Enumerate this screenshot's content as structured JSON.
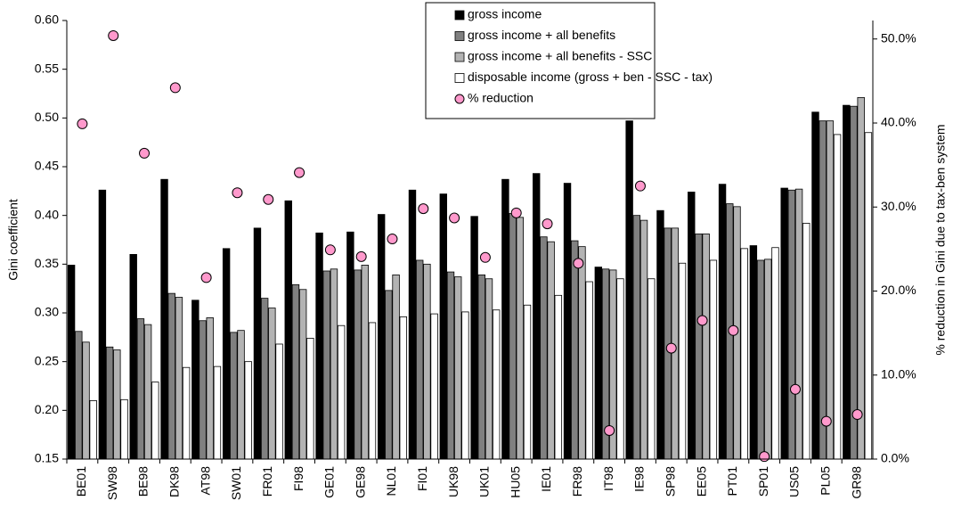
{
  "chart_data": {
    "type": "bar",
    "y_label": "Gini coefficient",
    "y2_label": "% reduction in Gini due to tax-ben system",
    "categories": [
      "BE01",
      "SW98",
      "BE98",
      "DK98",
      "AT98",
      "SW01",
      "FR01",
      "FI98",
      "GE01",
      "GE98",
      "NL01",
      "FI01",
      "UK98",
      "UK01",
      "HU05",
      "IE01",
      "FR98",
      "IT98",
      "IE98",
      "SP98",
      "EE05",
      "PT01",
      "SP01",
      "US05",
      "PL05",
      "GR98"
    ],
    "series": [
      {
        "name": "gross income",
        "color": "#000000",
        "values": [
          0.349,
          0.426,
          0.36,
          0.437,
          0.313,
          0.366,
          0.387,
          0.415,
          0.382,
          0.383,
          0.401,
          0.426,
          0.422,
          0.399,
          0.437,
          0.443,
          0.433,
          0.347,
          0.497,
          0.405,
          0.424,
          0.432,
          0.369,
          0.428,
          0.506,
          0.513
        ]
      },
      {
        "name": "gross income + all benefits",
        "color": "#808080",
        "values": [
          0.281,
          0.265,
          0.294,
          0.32,
          0.292,
          0.28,
          0.315,
          0.329,
          0.343,
          0.344,
          0.323,
          0.354,
          0.342,
          0.339,
          0.402,
          0.378,
          0.374,
          0.345,
          0.4,
          0.387,
          0.381,
          0.412,
          0.354,
          0.426,
          0.497,
          0.512
        ]
      },
      {
        "name": "gross income + all benefits - SSC",
        "color": "#b3b3b3",
        "values": [
          0.27,
          0.262,
          0.288,
          0.316,
          0.295,
          0.282,
          0.305,
          0.324,
          0.345,
          0.349,
          0.339,
          0.35,
          0.337,
          0.335,
          0.398,
          0.373,
          0.368,
          0.344,
          0.395,
          0.387,
          0.381,
          0.409,
          0.355,
          0.427,
          0.497,
          0.521
        ]
      },
      {
        "name": "disposable income (gross + ben - SSC - tax)",
        "color": "#ffffff",
        "values": [
          0.21,
          0.211,
          0.229,
          0.244,
          0.245,
          0.25,
          0.268,
          0.274,
          0.287,
          0.29,
          0.296,
          0.299,
          0.301,
          0.303,
          0.308,
          0.318,
          0.332,
          0.335,
          0.335,
          0.351,
          0.354,
          0.366,
          0.367,
          0.392,
          0.483,
          0.485
        ]
      },
      {
        "name": "% reduction",
        "color": "#ff99cc",
        "type": "scatter",
        "axis": "y2",
        "values": [
          39.9,
          50.4,
          36.4,
          44.2,
          21.6,
          31.7,
          30.9,
          34.1,
          24.9,
          24.1,
          26.2,
          29.8,
          28.7,
          24.0,
          29.3,
          28.0,
          23.3,
          3.4,
          32.5,
          13.2,
          16.5,
          15.3,
          0.3,
          8.3,
          4.5,
          5.3
        ]
      }
    ],
    "ylim": [
      0.15,
      0.6
    ],
    "yticks": [
      {
        "value": 0.15,
        "label": "0.15"
      },
      {
        "value": 0.2,
        "label": "0.20"
      },
      {
        "value": 0.25,
        "label": "0.25"
      },
      {
        "value": 0.3,
        "label": "0.30"
      },
      {
        "value": 0.35,
        "label": "0.35"
      },
      {
        "value": 0.4,
        "label": "0.40"
      },
      {
        "value": 0.45,
        "label": "0.45"
      },
      {
        "value": 0.5,
        "label": "0.50"
      },
      {
        "value": 0.55,
        "label": "0.55"
      },
      {
        "value": 0.6,
        "label": "0.60"
      }
    ],
    "y2lim": [
      0,
      52.2
    ],
    "y2ticks": [
      {
        "value": 0,
        "label": "0.0%"
      },
      {
        "value": 10,
        "label": "10.0%"
      },
      {
        "value": 20,
        "label": "20.0%"
      },
      {
        "value": 30,
        "label": "30.0%"
      },
      {
        "value": 40,
        "label": "40.0%"
      },
      {
        "value": 50,
        "label": "50.0%"
      }
    ],
    "legend": "top-right"
  }
}
